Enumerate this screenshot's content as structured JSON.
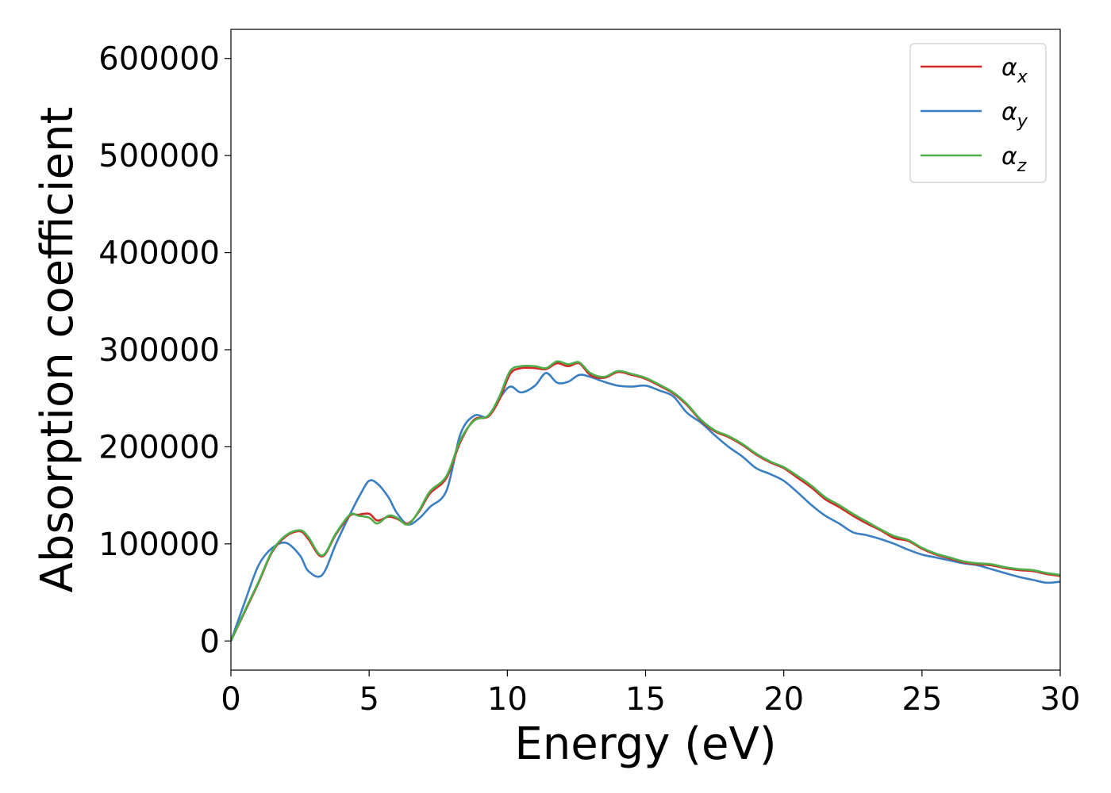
{
  "chart_data": {
    "type": "line",
    "title": "",
    "xlabel": "Energy (eV)",
    "ylabel": "Absorption coefficient",
    "xlim": [
      0,
      30
    ],
    "ylim": [
      -30000,
      630000
    ],
    "xticks": [
      0,
      5,
      10,
      15,
      20,
      25,
      30
    ],
    "yticks": [
      0,
      100000,
      200000,
      300000,
      400000,
      500000,
      600000
    ],
    "grid": false,
    "legend_position": "top-right",
    "series": [
      {
        "name": "αx",
        "legend_base": "α",
        "legend_sub": "x",
        "color": "#d62728",
        "x": [
          0,
          0.5,
          1,
          1.5,
          2,
          2.5,
          2.8,
          3.3,
          3.8,
          4.3,
          4.6,
          5,
          5.3,
          5.7,
          6,
          6.4,
          6.8,
          7.2,
          7.8,
          8.3,
          8.8,
          9.3,
          9.7,
          10.1,
          10.5,
          11,
          11.4,
          11.8,
          12.2,
          12.6,
          13,
          13.5,
          14,
          14.5,
          15,
          15.5,
          16,
          16.5,
          17,
          17.5,
          18,
          18.5,
          19,
          19.5,
          20,
          20.5,
          21,
          21.5,
          22,
          22.5,
          23,
          23.5,
          24,
          24.5,
          25,
          25.5,
          26,
          26.5,
          27,
          27.5,
          28,
          28.5,
          29,
          29.5,
          30
        ],
        "y": [
          0,
          30000,
          60000,
          92000,
          108000,
          113000,
          105000,
          87000,
          110000,
          129000,
          130000,
          131000,
          124000,
          128000,
          126000,
          121000,
          133000,
          152000,
          168000,
          205000,
          228000,
          231000,
          248000,
          275000,
          281000,
          281000,
          280000,
          286000,
          283000,
          286000,
          274000,
          271000,
          277000,
          274000,
          270000,
          263000,
          255000,
          243000,
          227000,
          216000,
          210000,
          202000,
          192000,
          184000,
          178000,
          168000,
          158000,
          146000,
          138000,
          129000,
          121000,
          114000,
          106000,
          103000,
          95000,
          89000,
          85000,
          81000,
          79000,
          78000,
          75000,
          73000,
          72000,
          69000,
          67000
        ]
      },
      {
        "name": "αy",
        "legend_base": "α",
        "legend_sub": "y",
        "color": "#3a7fc1",
        "x": [
          0,
          0.5,
          1,
          1.5,
          2,
          2.5,
          2.8,
          3.3,
          3.8,
          4.3,
          4.7,
          5,
          5.3,
          5.7,
          6,
          6.4,
          6.8,
          7.2,
          7.8,
          8.3,
          8.8,
          9.3,
          9.7,
          10.1,
          10.5,
          11,
          11.4,
          11.8,
          12.2,
          12.6,
          13,
          13.5,
          14,
          14.5,
          15,
          15.5,
          16,
          16.5,
          17,
          17.5,
          18,
          18.5,
          19,
          19.5,
          20,
          20.5,
          21,
          21.5,
          22,
          22.5,
          23,
          23.5,
          24,
          24.5,
          25,
          25.5,
          26,
          26.5,
          27,
          27.5,
          28,
          28.5,
          29,
          29.5,
          30
        ],
        "y": [
          0,
          40000,
          78000,
          96000,
          101000,
          88000,
          72000,
          68000,
          100000,
          130000,
          152000,
          165000,
          162000,
          148000,
          132000,
          120000,
          126000,
          138000,
          155000,
          213000,
          232000,
          231000,
          249000,
          262000,
          256000,
          263000,
          276000,
          266000,
          267000,
          274000,
          272000,
          267000,
          263000,
          262000,
          263000,
          258000,
          252000,
          235000,
          225000,
          212000,
          200000,
          190000,
          178000,
          172000,
          165000,
          153000,
          140000,
          129000,
          121000,
          112000,
          109000,
          105000,
          100000,
          94000,
          89000,
          86000,
          83000,
          80000,
          78000,
          74000,
          70000,
          66000,
          63000,
          60000,
          61000
        ]
      },
      {
        "name": "αz",
        "legend_base": "α",
        "legend_sub": "z",
        "color": "#4daf4a",
        "x": [
          0,
          0.5,
          1,
          1.5,
          2,
          2.5,
          2.8,
          3.3,
          3.8,
          4.3,
          4.6,
          5,
          5.3,
          5.7,
          6,
          6.4,
          6.8,
          7.2,
          7.8,
          8.3,
          8.8,
          9.3,
          9.7,
          10.1,
          10.5,
          11,
          11.4,
          11.8,
          12.2,
          12.6,
          13,
          13.5,
          14,
          14.5,
          15,
          15.5,
          16,
          16.5,
          17,
          17.5,
          18,
          18.5,
          19,
          19.5,
          20,
          20.5,
          21,
          21.5,
          22,
          22.5,
          23,
          23.5,
          24,
          24.5,
          25,
          25.5,
          26,
          26.5,
          27,
          27.5,
          28,
          28.5,
          29,
          29.5,
          30
        ],
        "y": [
          0,
          31000,
          61000,
          93000,
          109000,
          114000,
          107000,
          88000,
          111000,
          130000,
          129000,
          127000,
          121000,
          129000,
          127000,
          120000,
          134000,
          154000,
          170000,
          207000,
          227000,
          232000,
          251000,
          278000,
          283000,
          283000,
          281000,
          288000,
          285000,
          287000,
          276000,
          272000,
          278000,
          275000,
          271000,
          264000,
          256000,
          244000,
          228000,
          217000,
          211000,
          203000,
          193000,
          185000,
          179000,
          170000,
          160000,
          148000,
          140000,
          131000,
          123000,
          115000,
          108000,
          104000,
          96000,
          90000,
          86000,
          82000,
          80000,
          79000,
          76000,
          74000,
          73000,
          70000,
          68000
        ]
      }
    ]
  }
}
